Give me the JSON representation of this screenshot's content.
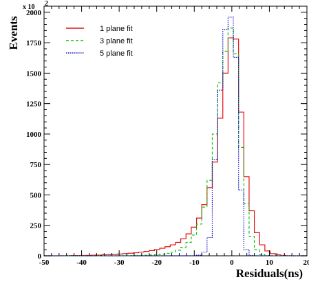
{
  "colors": {
    "series_1": "#e01010",
    "series_3": "#10c010",
    "series_5": "#1010c8"
  },
  "chart_data": {
    "type": "line",
    "step": true,
    "xlabel": "Residuals(ns)",
    "ylabel": "Events",
    "y_multiplier_label": "x 10",
    "y_multiplier_exp": "2",
    "xlim": [
      -50,
      20
    ],
    "ylim": [
      0,
      2050
    ],
    "x_ticks": [
      -50,
      -40,
      -30,
      -20,
      -10,
      0,
      10,
      20
    ],
    "x_tick_labels": [
      "-50",
      "-40",
      "-30",
      "-20",
      "-10",
      "0",
      "10",
      "20"
    ],
    "y_ticks": [
      0,
      250,
      500,
      750,
      1000,
      1250,
      1500,
      1750,
      2000
    ],
    "y_tick_labels": [
      "0",
      "250",
      "500",
      "750",
      "1000",
      "1250",
      "1500",
      "1750",
      "2000"
    ],
    "legend_position": "top-left",
    "bin_edges": [
      -50,
      -48.6,
      -47.2,
      -45.8,
      -44.4,
      -43,
      -41.6,
      -40.2,
      -38.8,
      -37.4,
      -36,
      -34.6,
      -33.2,
      -31.8,
      -30.4,
      -29,
      -27.6,
      -26.2,
      -24.8,
      -23.4,
      -22,
      -20.6,
      -19.2,
      -17.8,
      -16.4,
      -15,
      -13.6,
      -12.2,
      -10.8,
      -9.4,
      -8,
      -6.6,
      -5.2,
      -3.8,
      -2.4,
      -1,
      0.4,
      1.8,
      3.2,
      4.6,
      6,
      7.4,
      8.8,
      10.2,
      11.6,
      13,
      14.4,
      15.8,
      17.2,
      18.6,
      20
    ],
    "series": [
      {
        "name": "1 plane fit",
        "style": "solid",
        "values": [
          0,
          0,
          0,
          1,
          1,
          2,
          2,
          3,
          4,
          5,
          6,
          8,
          10,
          12,
          15,
          18,
          21,
          25,
          30,
          36,
          43,
          52,
          62,
          75,
          90,
          110,
          140,
          180,
          235,
          310,
          420,
          560,
          770,
          1130,
          1500,
          1790,
          1780,
          1180,
          650,
          370,
          190,
          90,
          40,
          18,
          8,
          3,
          1,
          0,
          0,
          0
        ]
      },
      {
        "name": "3 plane fit",
        "style": "dashed",
        "values": [
          0,
          0,
          0,
          0,
          0,
          0,
          0,
          0,
          0,
          0,
          0,
          0,
          0,
          0,
          1,
          1,
          2,
          3,
          4,
          5,
          7,
          10,
          14,
          20,
          30,
          45,
          70,
          110,
          170,
          260,
          400,
          620,
          1000,
          1420,
          1680,
          1870,
          1660,
          890,
          430,
          160,
          50,
          10,
          2,
          0,
          0,
          0,
          0,
          0,
          0,
          0
        ]
      },
      {
        "name": "5 plane fit",
        "style": "dotted",
        "values": [
          0,
          0,
          0,
          0,
          0,
          0,
          0,
          0,
          0,
          0,
          0,
          0,
          0,
          0,
          0,
          0,
          0,
          0,
          0,
          0,
          0,
          0,
          0,
          0,
          0,
          0,
          0,
          0,
          0,
          5,
          30,
          150,
          790,
          1360,
          1860,
          1960,
          1630,
          540,
          50,
          3,
          0,
          0,
          0,
          0,
          0,
          0,
          0,
          0,
          0,
          0
        ]
      }
    ]
  }
}
